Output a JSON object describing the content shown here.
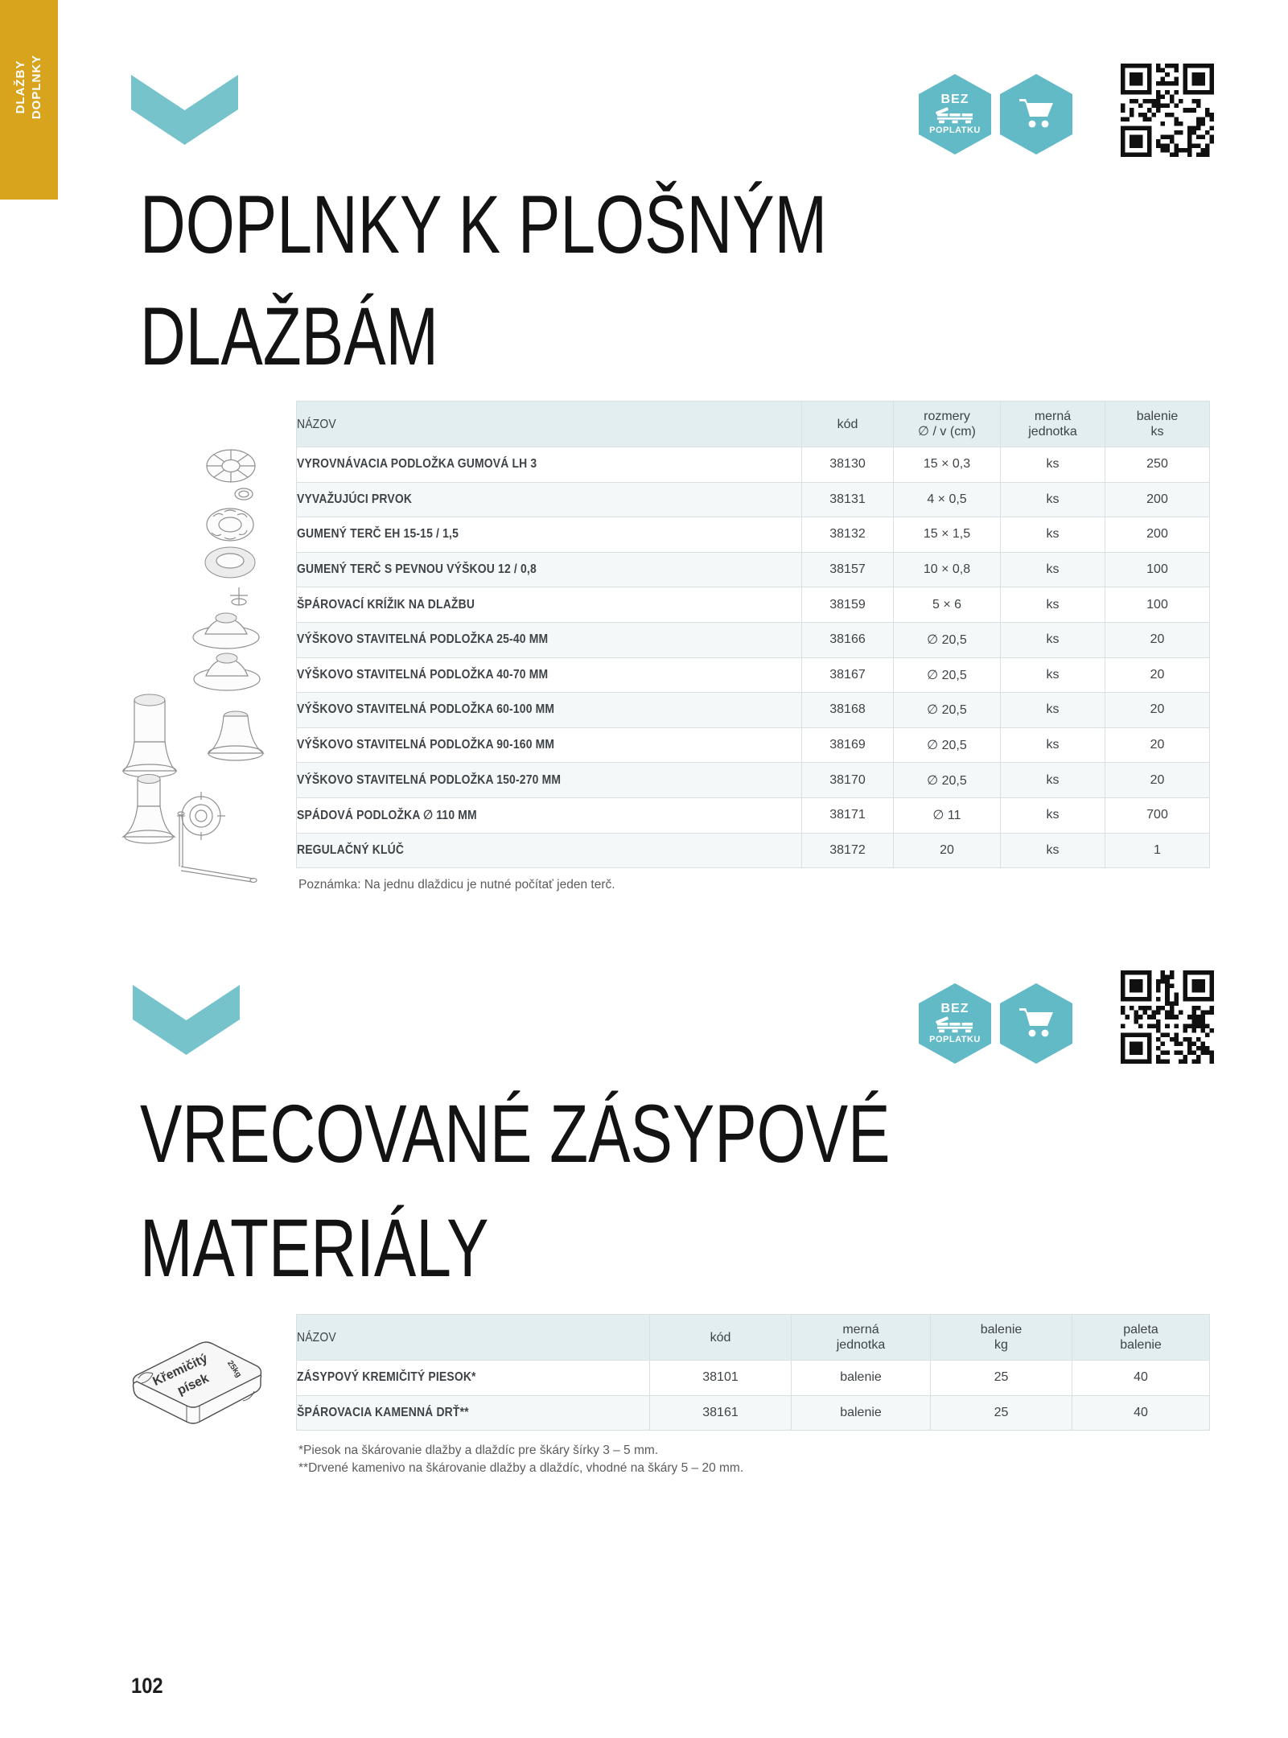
{
  "page": {
    "number": "102"
  },
  "side_tab": {
    "line1": "DLAŽBY",
    "line2": "DOPLNKY"
  },
  "colors": {
    "teal_chevron": "#76C3CB",
    "teal_badge": "#61BAC5",
    "tab_yellow": "#D8A41E",
    "table_header_bg": "#E2EEF0",
    "row_alt_bg": "#F5F8F9"
  },
  "badges": {
    "bez_poplatku": {
      "top": "BEZ",
      "bottom": "POPLATKU"
    }
  },
  "section1": {
    "title_line1": "DOPLNKY K PLOŠNÝM",
    "title_line2": "DLAŽBÁM",
    "note": "Poznámka: Na jednu dlaždicu je nutné počítať jeden terč.",
    "table": {
      "headers": [
        [
          "NÁZOV"
        ],
        [
          "kód"
        ],
        [
          "rozmery",
          "∅ / v (cm)"
        ],
        [
          "merná",
          "jednotka"
        ],
        [
          "balenie",
          "ks"
        ]
      ],
      "rows": [
        [
          "VYROVNÁVACIA PODLOŽKA GUMOVÁ LH 3",
          "38130",
          "15 × 0,3",
          "ks",
          "250"
        ],
        [
          "VYVAŽUJÚCI PRVOK",
          "38131",
          "4 × 0,5",
          "ks",
          "200"
        ],
        [
          "GUMENÝ TERČ EH 15-15 / 1,5",
          "38132",
          "15 × 1,5",
          "ks",
          "200"
        ],
        [
          "GUMENÝ TERČ S PEVNOU VÝŠKOU 12 / 0,8",
          "38157",
          "10 × 0,8",
          "ks",
          "100"
        ],
        [
          "ŠPÁROVACÍ KRÍŽIK NA DLAŽBU",
          "38159",
          "5 × 6",
          "ks",
          "100"
        ],
        [
          "VÝŠKOVO STAVITELNÁ PODLOŽKA 25-40 MM",
          "38166",
          "∅ 20,5",
          "ks",
          "20"
        ],
        [
          "VÝŠKOVO STAVITELNÁ PODLOŽKA 40-70 MM",
          "38167",
          "∅ 20,5",
          "ks",
          "20"
        ],
        [
          "VÝŠKOVO STAVITELNÁ PODLOŽKA 60-100 MM",
          "38168",
          "∅ 20,5",
          "ks",
          "20"
        ],
        [
          "VÝŠKOVO STAVITELNÁ PODLOŽKA 90-160 MM",
          "38169",
          "∅ 20,5",
          "ks",
          "20"
        ],
        [
          "VÝŠKOVO STAVITELNÁ PODLOŽKA 150-270 MM",
          "38170",
          "∅ 20,5",
          "ks",
          "20"
        ],
        [
          "SPÁDOVÁ PODLOŽKA ∅ 110 MM",
          "38171",
          "∅ 11",
          "ks",
          "700"
        ],
        [
          "REGULAČNÝ KLÚČ",
          "38172",
          "20",
          "ks",
          "1"
        ]
      ]
    }
  },
  "section2": {
    "title_line1": "VRECOVANÉ ZÁSYPOVÉ",
    "title_line2": "MATERIÁLY",
    "table": {
      "headers": [
        [
          "NÁZOV"
        ],
        [
          "kód"
        ],
        [
          "merná",
          "jednotka"
        ],
        [
          "balenie",
          "kg"
        ],
        [
          "paleta",
          "balenie"
        ]
      ],
      "rows": [
        [
          "ZÁSYPOVÝ KREMIČITÝ PIESOK*",
          "38101",
          "balenie",
          "25",
          "40"
        ],
        [
          "ŠPÁROVACIA KAMENNÁ DRŤ**",
          "38161",
          "balenie",
          "25",
          "40"
        ]
      ]
    },
    "footnote1": "*Piesok na škárovanie dlažby a dlaždíc pre škáry šírky 3 – 5 mm.",
    "footnote2": "**Drvené kamenivo na škárovanie dlažby a dlaždíc, vhodné na škáry 5 – 20 mm.",
    "bag": {
      "label_line1": "Křemičitý",
      "label_line2": "písek",
      "weight": "25kg"
    }
  }
}
